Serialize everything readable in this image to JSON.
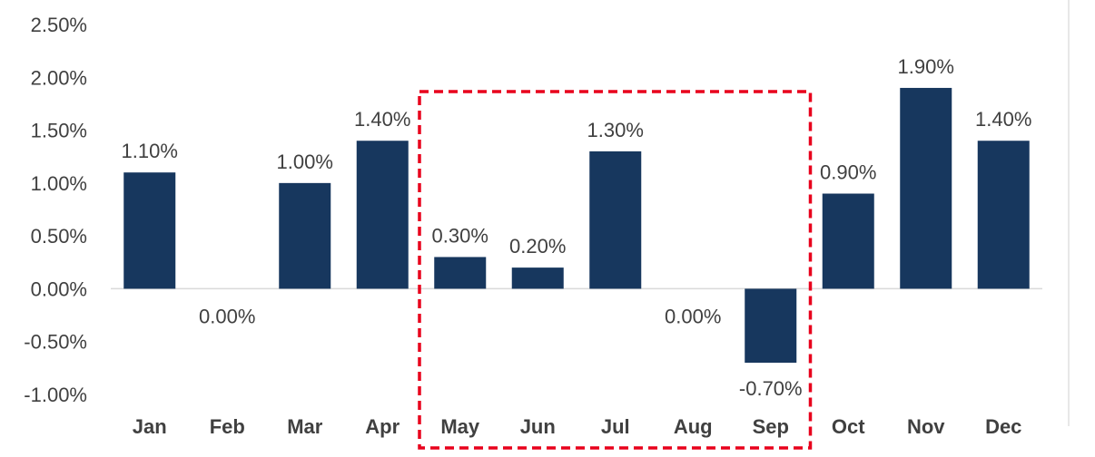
{
  "chart_data": {
    "type": "bar",
    "categories": [
      "Jan",
      "Feb",
      "Mar",
      "Apr",
      "May",
      "Jun",
      "Jul",
      "Aug",
      "Sep",
      "Oct",
      "Nov",
      "Dec"
    ],
    "values": [
      1.1,
      0.0,
      1.0,
      1.4,
      0.3,
      0.2,
      1.3,
      0.0,
      -0.7,
      0.9,
      1.9,
      1.4
    ],
    "data_labels": [
      "1.10%",
      "0.00%",
      "1.00%",
      "1.40%",
      "0.30%",
      "0.20%",
      "1.30%",
      "0.00%",
      "-0.70%",
      "0.90%",
      "1.90%",
      "1.40%"
    ],
    "ytick_values": [
      2.5,
      2.0,
      1.5,
      1.0,
      0.5,
      0.0,
      -0.5,
      -1.0
    ],
    "ytick_labels": [
      "2.50%",
      "2.00%",
      "1.50%",
      "1.00%",
      "0.50%",
      "0.00%",
      "-0.50%",
      "-1.00%"
    ],
    "ylim": [
      -1.0,
      2.5
    ],
    "grid": false,
    "legend": "none",
    "bar_color": "#17375e",
    "highlight": {
      "categories": [
        "May",
        "Jun",
        "Jul",
        "Aug",
        "Sep"
      ],
      "style": "dashed-box",
      "color": "#e8001c"
    }
  }
}
